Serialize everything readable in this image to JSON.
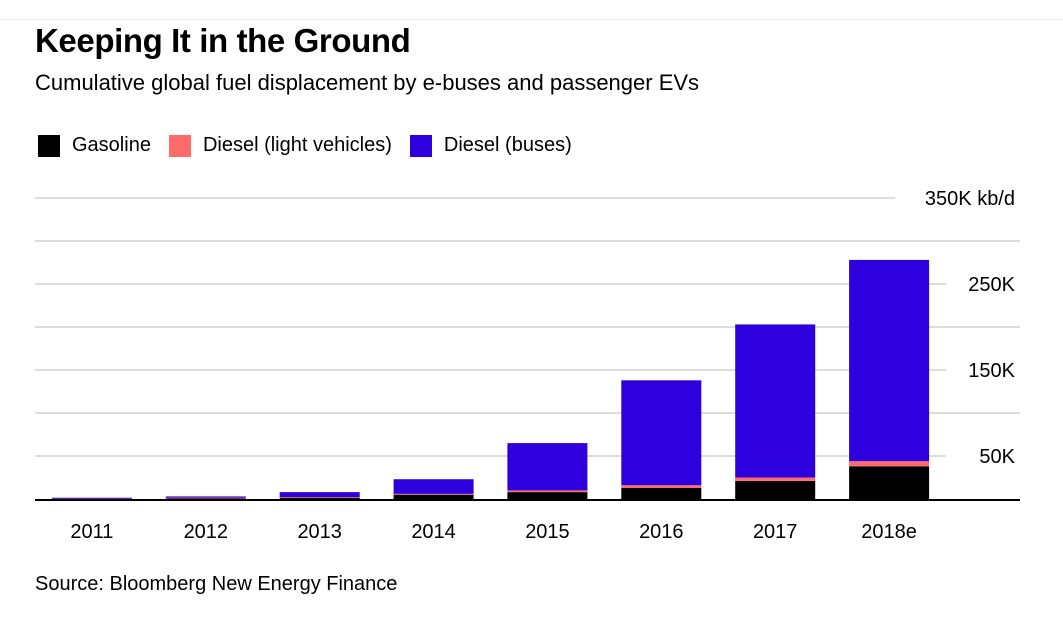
{
  "title": "Keeping It in the Ground",
  "subtitle": "Cumulative global fuel displacement by e-buses and passenger EVs",
  "source": "Source: Bloomberg New Energy Finance",
  "legend": [
    {
      "label": "Gasoline",
      "color": "#000000"
    },
    {
      "label": "Diesel (light vehicles)",
      "color": "#ff6b6b"
    },
    {
      "label": "Diesel (buses)",
      "color": "#2d00dd"
    }
  ],
  "chart_data": {
    "type": "bar",
    "stacked": true,
    "categories": [
      "2011",
      "2012",
      "2013",
      "2014",
      "2015",
      "2016",
      "2017",
      "2018e"
    ],
    "series": [
      {
        "name": "Gasoline",
        "color": "#000000",
        "values": [
          300,
          800,
          1500,
          5000,
          8000,
          13000,
          21000,
          38000
        ]
      },
      {
        "name": "Diesel (light vehicles)",
        "color": "#ff6b6b",
        "values": [
          100,
          800,
          700,
          1000,
          2000,
          3000,
          4000,
          6000
        ]
      },
      {
        "name": "Diesel (buses)",
        "color": "#2d00dd",
        "values": [
          1100,
          1400,
          5800,
          17000,
          55000,
          122000,
          178000,
          234000
        ]
      }
    ],
    "ylim": [
      0,
      350000
    ],
    "yticks": [
      {
        "value": 50000,
        "label": "50K"
      },
      {
        "value": 150000,
        "label": "150K"
      },
      {
        "value": 250000,
        "label": "250K"
      },
      {
        "value": 350000,
        "label": "350K kb/d"
      }
    ],
    "gridlines": [
      50000,
      100000,
      150000,
      200000,
      250000,
      300000,
      350000
    ],
    "grid": true,
    "legend_position": "top-left"
  }
}
